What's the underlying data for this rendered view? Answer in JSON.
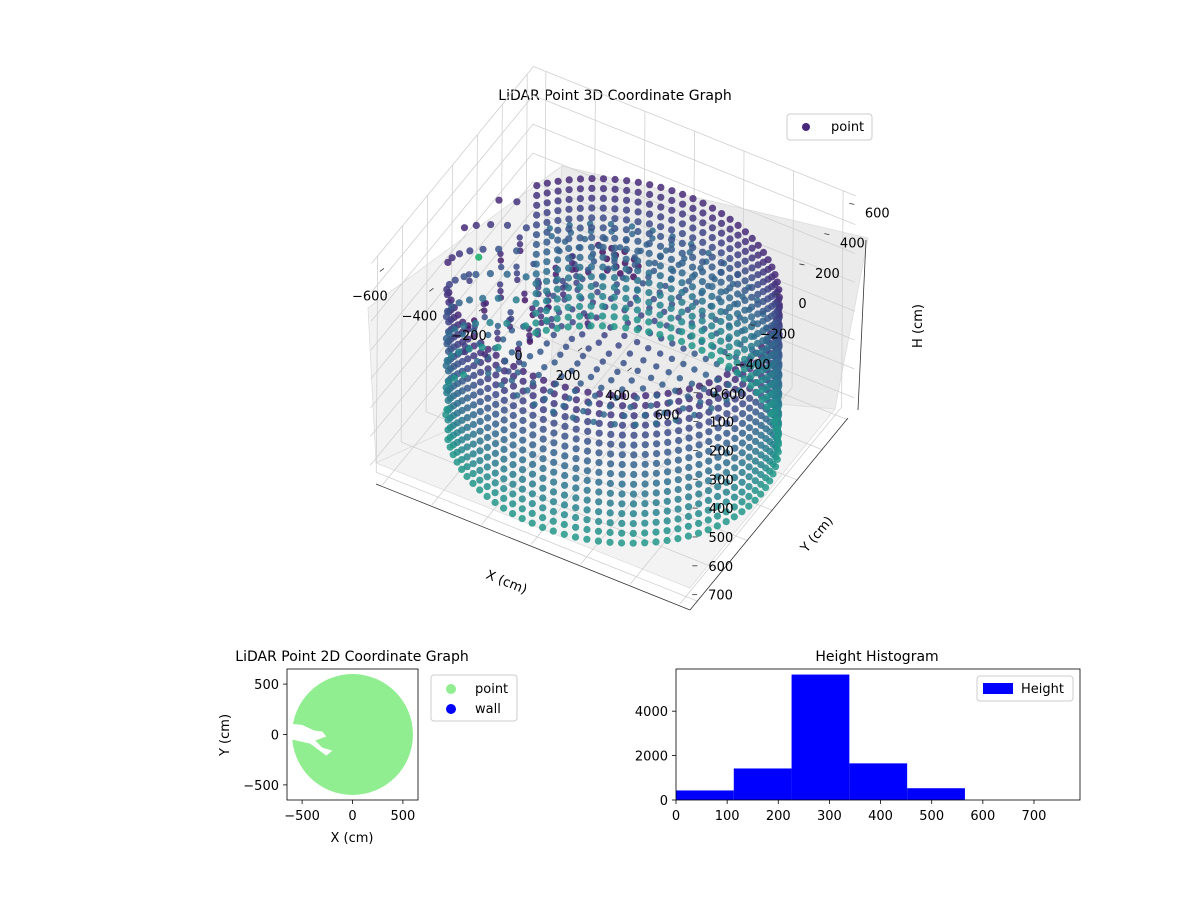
{
  "chart_data": [
    {
      "type": "scatter3d",
      "title": "LiDAR Point 3D Coordinate Graph",
      "xlabel": "X (cm)",
      "ylabel": "Y (cm)",
      "zlabel": "H (cm)",
      "xticks": [
        "−600",
        "−400",
        "−200",
        "0",
        "200",
        "400",
        "600"
      ],
      "yticks": [
        "−600",
        "−400",
        "−200",
        "0",
        "200",
        "400",
        "600"
      ],
      "zticks": [
        "0",
        "100",
        "200",
        "300",
        "400",
        "500",
        "600",
        "700"
      ],
      "xlim": [
        -650,
        650
      ],
      "ylim": [
        -650,
        650
      ],
      "zlim": [
        0,
        750
      ],
      "z_axis_inverted": true,
      "legend": [
        "point"
      ],
      "legend_position": "top-right",
      "colormap": "viridis",
      "wall_radius": 600,
      "wall_height_range": [
        200,
        730
      ],
      "gap_angle_deg": [
        145,
        215
      ],
      "grid": true
    },
    {
      "type": "scatter",
      "title": "LiDAR Point 2D Coordinate Graph",
      "xlabel": "X (cm)",
      "ylabel": "Y (cm)",
      "xticks": [
        "−500",
        "0",
        "500"
      ],
      "yticks": [
        "500",
        "0",
        "−500"
      ],
      "xlim": [
        -650,
        650
      ],
      "ylim": [
        -650,
        650
      ],
      "disk_radius": 600,
      "series": [
        {
          "name": "point",
          "color": "#90ee90"
        },
        {
          "name": "wall",
          "color": "#0000ff"
        }
      ],
      "legend_position": "outside-right"
    },
    {
      "type": "bar",
      "title": "Height Histogram",
      "xticks": [
        "0",
        "100",
        "200",
        "300",
        "400",
        "500",
        "600",
        "700"
      ],
      "yticks": [
        "0",
        "2000",
        "4000"
      ],
      "xlim": [
        0,
        790
      ],
      "ylim": [
        0,
        5900
      ],
      "bin_edges": [
        0,
        113,
        226,
        339,
        452,
        565,
        678,
        790
      ],
      "values": [
        430,
        1420,
        5650,
        1650,
        530,
        0,
        0
      ],
      "series": [
        {
          "name": "Height",
          "color": "#0000ff"
        }
      ],
      "legend_position": "top-right"
    }
  ]
}
